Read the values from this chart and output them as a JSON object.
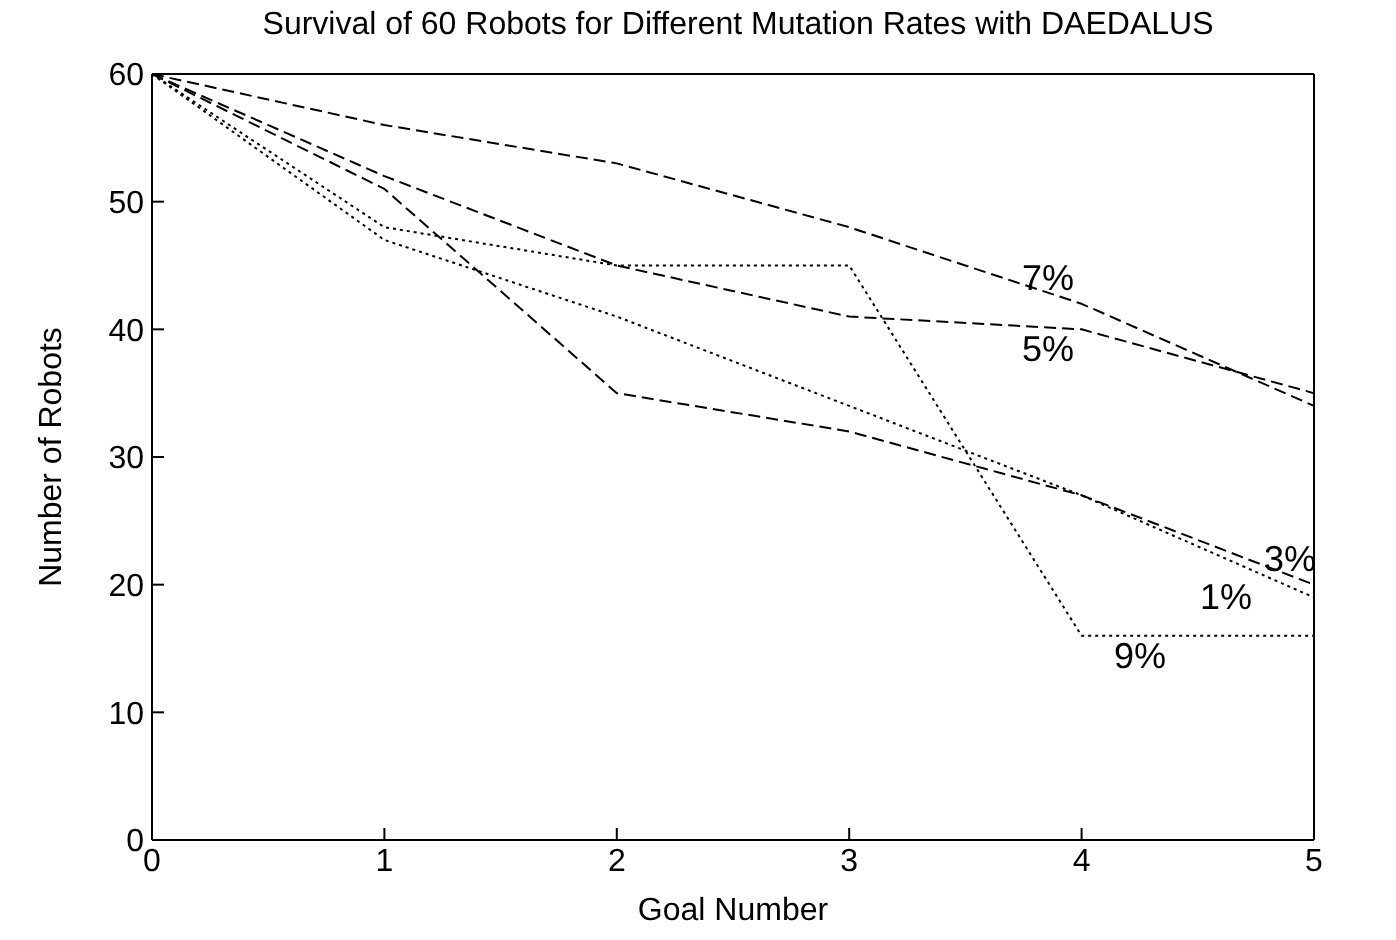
{
  "chart_data": {
    "type": "line",
    "title": "Survival of 60 Robots for Different Mutation Rates with DAEDALUS",
    "xlabel": "Goal Number",
    "ylabel": "Number of Robots",
    "x": [
      0,
      1,
      2,
      3,
      4,
      5
    ],
    "series": [
      {
        "name": "7%",
        "color": "#000000",
        "line_style": "dashed",
        "values": [
          60,
          56,
          53,
          48,
          42,
          34
        ]
      },
      {
        "name": "5%",
        "color": "#000000",
        "line_style": "dashed",
        "values": [
          60,
          52,
          45,
          41,
          40,
          35
        ]
      },
      {
        "name": "3%",
        "color": "#000000",
        "line_style": "dashed",
        "values": [
          60,
          51,
          35,
          32,
          27,
          20
        ]
      },
      {
        "name": "1%",
        "color": "#000000",
        "line_style": "dotted",
        "values": [
          60,
          47,
          41,
          34,
          27,
          19
        ]
      },
      {
        "name": "9%",
        "color": "#000000",
        "line_style": "dotted",
        "values": [
          60,
          48,
          45,
          45,
          16,
          16
        ]
      }
    ],
    "xlim": [
      0,
      5
    ],
    "xticks": [
      0,
      1,
      2,
      3,
      4,
      5
    ],
    "ylim": [
      0,
      60
    ],
    "yticks": [
      0,
      10,
      20,
      30,
      40,
      50,
      60
    ],
    "marker": "none"
  }
}
